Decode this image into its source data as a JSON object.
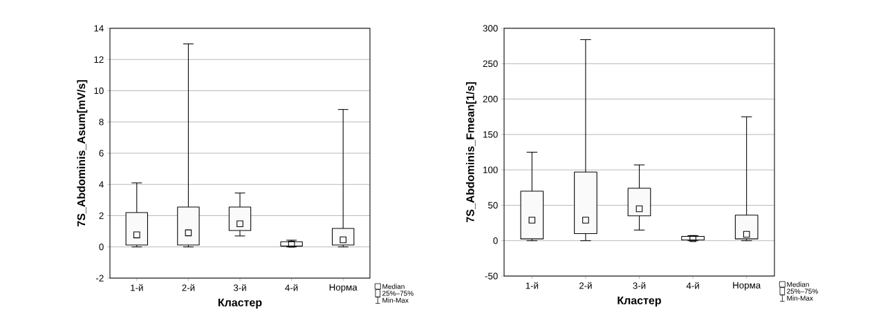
{
  "chart_data": [
    {
      "type": "box",
      "categories": [
        "1-й",
        "2-й",
        "3-й",
        "4-й",
        "Норма"
      ],
      "xlabel": "Кластер",
      "ylabel": "7S_Abdominis_Asum[mV/s]",
      "boxes": [
        {
          "low": 0,
          "q1": 0.12,
          "median": 0.77,
          "q3": 2.2,
          "high": 4.1
        },
        {
          "low": 0,
          "q1": 0.12,
          "median": 0.9,
          "q3": 2.55,
          "high": 13.0
        },
        {
          "low": 0.7,
          "q1": 1.05,
          "median": 1.48,
          "q3": 2.55,
          "high": 3.45
        },
        {
          "low": 0,
          "q1": 0.05,
          "median": 0.18,
          "q3": 0.33,
          "high": 0.43
        },
        {
          "low": 0,
          "q1": 0.12,
          "median": 0.45,
          "q3": 1.18,
          "high": 8.8
        }
      ],
      "ylim": [
        -2,
        14
      ],
      "yticks": [
        -2,
        0,
        2,
        4,
        6,
        8,
        10,
        12,
        14
      ],
      "grid": "y",
      "annotations": [
        "Median",
        "25%–75%",
        "Min-Max"
      ]
    },
    {
      "type": "box",
      "categories": [
        "1-й",
        "2-й",
        "3-й",
        "4-й",
        "Норма"
      ],
      "xlabel": "Кластер",
      "ylabel": "7S_Abdominis_Fmean[1/s]",
      "boxes": [
        {
          "low": 0,
          "q1": 2.5,
          "median": 29,
          "q3": 70,
          "high": 125
        },
        {
          "low": 0,
          "q1": 10,
          "median": 29,
          "q3": 97,
          "high": 284
        },
        {
          "low": 15,
          "q1": 35,
          "median": 45,
          "q3": 74,
          "high": 107
        },
        {
          "low": 0,
          "q1": 1,
          "median": 3,
          "q3": 6,
          "high": 7
        },
        {
          "low": 0,
          "q1": 2.5,
          "median": 9,
          "q3": 36,
          "high": 175
        }
      ],
      "ylim": [
        -50,
        300
      ],
      "yticks": [
        -50,
        0,
        50,
        100,
        150,
        200,
        250,
        300
      ],
      "grid": "y",
      "annotations": [
        "Median",
        "25%–75%",
        "Min-Max"
      ]
    }
  ]
}
